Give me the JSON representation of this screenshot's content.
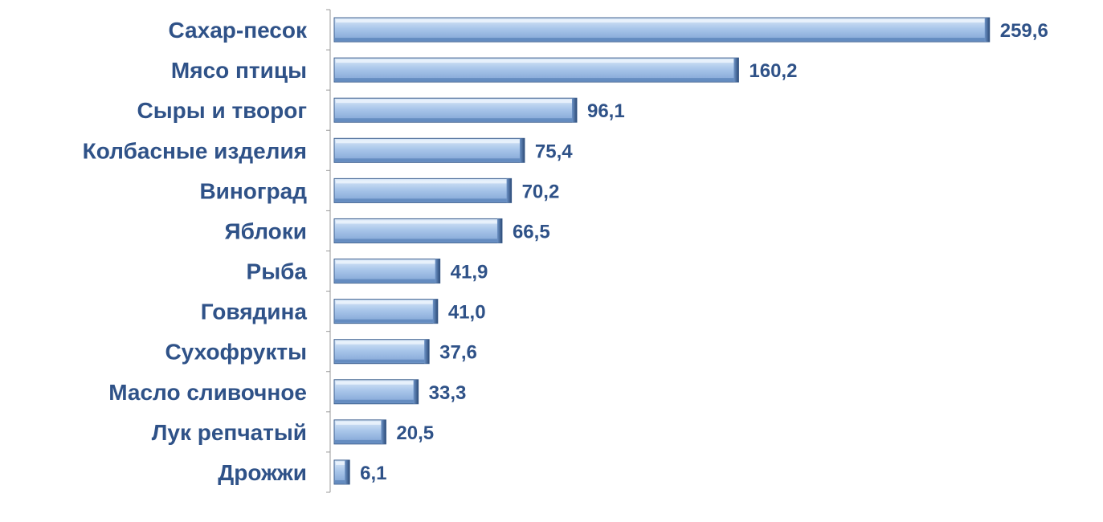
{
  "chart_data": {
    "type": "bar",
    "orientation": "horizontal",
    "categories": [
      "Сахар-песок",
      "Мясо птицы",
      "Сыры и творог",
      "Колбасные изделия",
      "Виноград",
      "Яблоки",
      "Рыба",
      "Говядина",
      "Сухофрукты",
      "Масло сливочное",
      "Лук репчатый",
      "Дрожжи"
    ],
    "values": [
      259.6,
      160.2,
      96.1,
      75.4,
      70.2,
      66.5,
      41.9,
      41.0,
      37.6,
      33.3,
      20.5,
      6.1
    ],
    "value_labels": [
      "259,6",
      "160,2",
      "96,1",
      "75,4",
      "70,2",
      "66,5",
      "41,9",
      "41,0",
      "37,6",
      "33,3",
      "20,5",
      "6,1"
    ],
    "title": "",
    "xlabel": "",
    "ylabel": "",
    "xlim": [
      0,
      260
    ],
    "grid": false,
    "legend": "none",
    "colors": {
      "bar_light": "#c6dcf3",
      "bar_mid": "#95b8e3",
      "bar_dark": "#5a83b8",
      "bar_edge": "#3d5f8e",
      "label_text": "#2f5288",
      "axis_line": "#9a9a9a"
    }
  }
}
